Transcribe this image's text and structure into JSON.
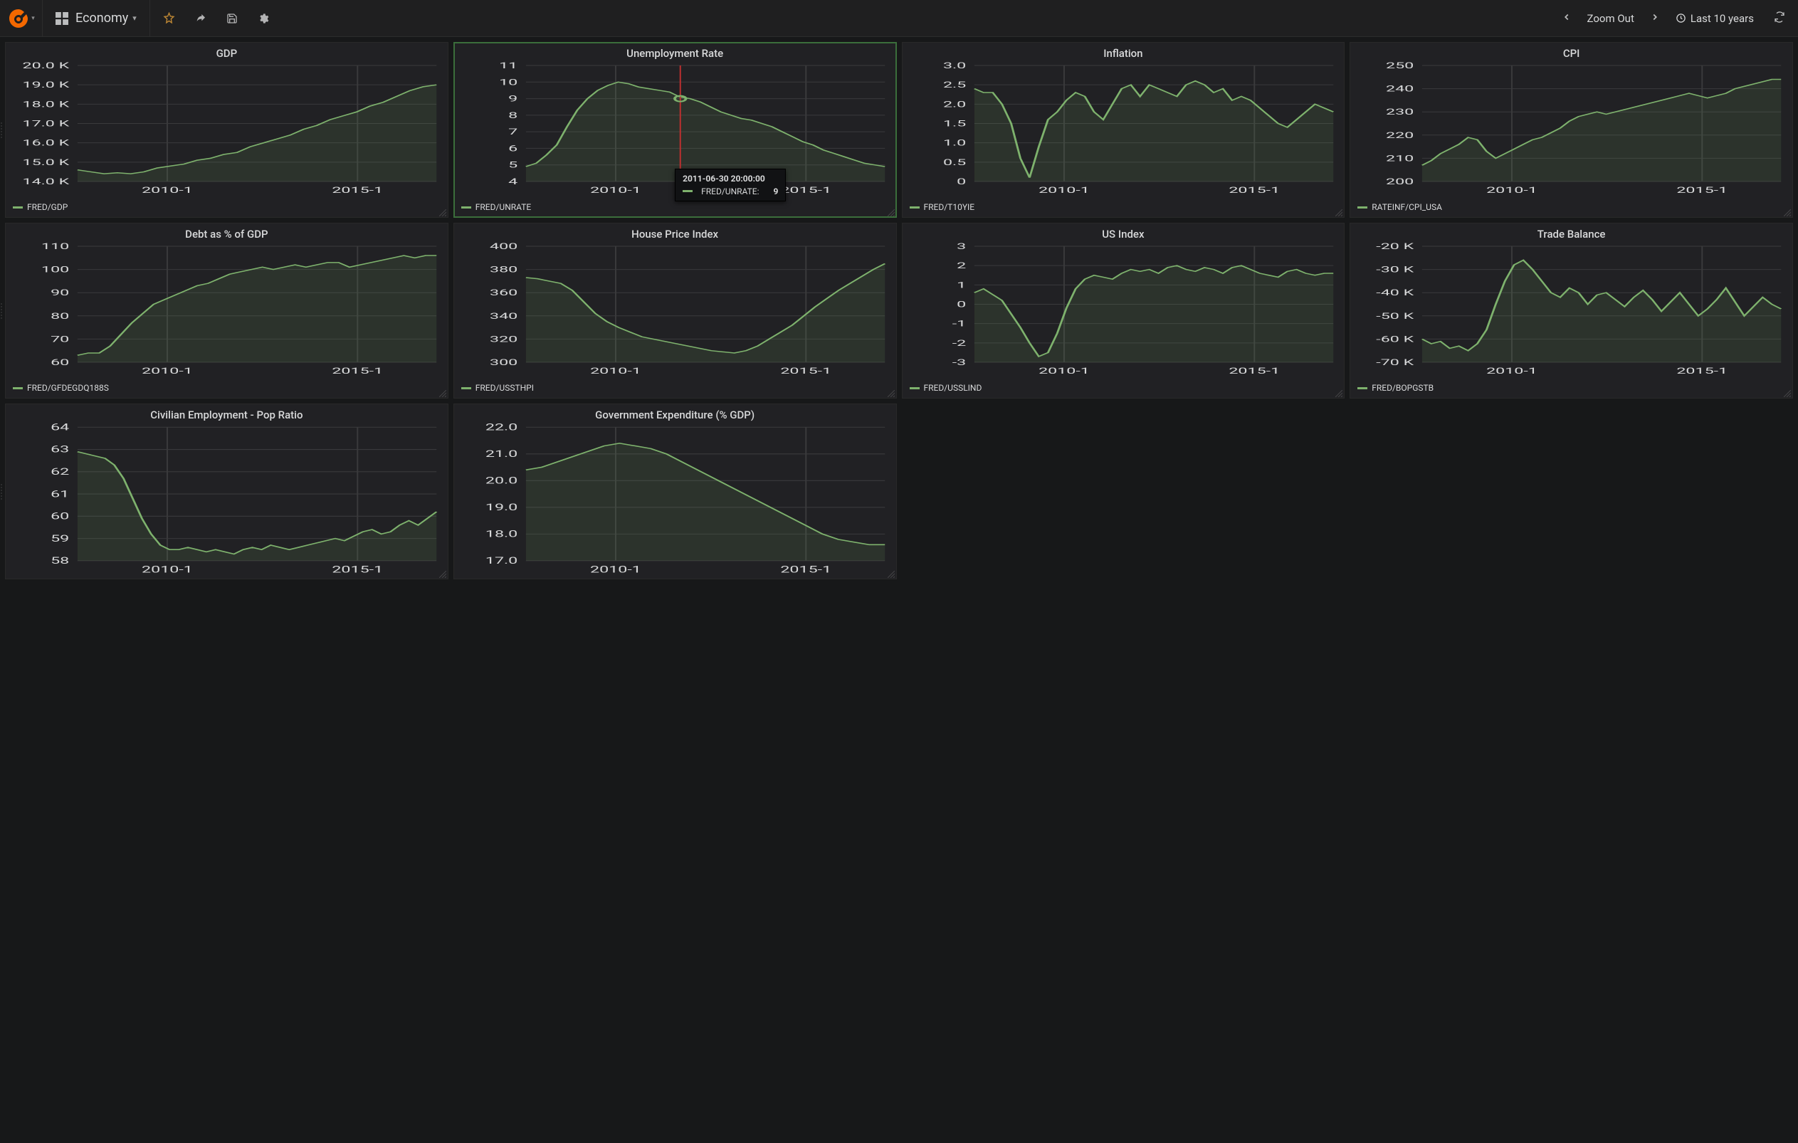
{
  "navbar": {
    "dashboard_title": "Economy",
    "zoom_out_label": "Zoom Out",
    "time_range_label": "Last 10 years"
  },
  "colors": {
    "background": "#171819",
    "panel_bg": "#212124",
    "grid": "#3a3a3c",
    "series": "#7eb26d",
    "area_opacity": 0.12,
    "crosshair": "#c03030",
    "text": "#d8d9da",
    "star": "#e5a13a"
  },
  "tooltip": {
    "timestamp": "2011-06-30 20:00:00",
    "series_label": "FRED/UNRATE:",
    "value": "9"
  },
  "xaxis": {
    "ticks": [
      "2010-1",
      "2015-1"
    ],
    "positions": [
      0.25,
      0.78
    ]
  },
  "panels": [
    {
      "id": "gdp",
      "title": "GDP",
      "legend": "FRED/GDP",
      "type": "line",
      "yticks": [
        "14.0 K",
        "15.0 K",
        "16.0 K",
        "17.0 K",
        "18.0 K",
        "19.0 K",
        "20.0 K"
      ],
      "ymin": 14000,
      "ymax": 20000,
      "values": [
        14600,
        14500,
        14400,
        14450,
        14400,
        14500,
        14700,
        14800,
        14900,
        15100,
        15200,
        15400,
        15500,
        15800,
        16000,
        16200,
        16400,
        16700,
        16900,
        17200,
        17400,
        17600,
        17900,
        18100,
        18400,
        18700,
        18900,
        19000
      ],
      "row_handle": true
    },
    {
      "id": "unrate",
      "title": "Unemployment Rate",
      "legend": "FRED/UNRATE",
      "type": "line",
      "yticks": [
        "4",
        "5",
        "6",
        "7",
        "8",
        "9",
        "10",
        "11"
      ],
      "ymin": 4,
      "ymax": 11,
      "values": [
        4.9,
        5.1,
        5.6,
        6.2,
        7.3,
        8.3,
        9.0,
        9.5,
        9.8,
        10.0,
        9.9,
        9.7,
        9.6,
        9.5,
        9.4,
        9.1,
        9.0,
        8.8,
        8.5,
        8.2,
        8.0,
        7.8,
        7.7,
        7.5,
        7.3,
        7.0,
        6.7,
        6.4,
        6.2,
        5.9,
        5.7,
        5.5,
        5.3,
        5.1,
        5.0,
        4.9
      ],
      "active": true,
      "crosshair_x": 0.43,
      "hover_value": 9.0,
      "tooltip_pos": {
        "left_pct": 50,
        "top_pct": 78
      }
    },
    {
      "id": "inflation",
      "title": "Inflation",
      "legend": "FRED/T10YIE",
      "type": "line",
      "yticks": [
        "0",
        "0.5",
        "1.0",
        "1.5",
        "2.0",
        "2.5",
        "3.0"
      ],
      "ymin": 0,
      "ymax": 3.0,
      "values": [
        2.4,
        2.3,
        2.3,
        2.0,
        1.5,
        0.6,
        0.1,
        0.9,
        1.6,
        1.8,
        2.1,
        2.3,
        2.2,
        1.8,
        1.6,
        2.0,
        2.4,
        2.5,
        2.2,
        2.5,
        2.4,
        2.3,
        2.2,
        2.5,
        2.6,
        2.5,
        2.3,
        2.4,
        2.1,
        2.2,
        2.1,
        1.9,
        1.7,
        1.5,
        1.4,
        1.6,
        1.8,
        2.0,
        1.9,
        1.8
      ],
      "row_handle": false
    },
    {
      "id": "cpi",
      "title": "CPI",
      "legend": "RATEINF/CPI_USA",
      "type": "line",
      "yticks": [
        "200",
        "210",
        "220",
        "230",
        "240",
        "250"
      ],
      "ymin": 200,
      "ymax": 250,
      "values": [
        207,
        209,
        212,
        214,
        216,
        219,
        218,
        213,
        210,
        212,
        214,
        216,
        218,
        219,
        221,
        223,
        226,
        228,
        229,
        230,
        229,
        230,
        231,
        232,
        233,
        234,
        235,
        236,
        237,
        238,
        237,
        236,
        237,
        238,
        240,
        241,
        242,
        243,
        244,
        244
      ]
    },
    {
      "id": "debt",
      "title": "Debt as % of GDP",
      "legend": "FRED/GFDEGDQ188S",
      "type": "line",
      "yticks": [
        "60",
        "70",
        "80",
        "90",
        "100",
        "110"
      ],
      "ymin": 60,
      "ymax": 110,
      "values": [
        63,
        64,
        64,
        67,
        72,
        77,
        81,
        85,
        87,
        89,
        91,
        93,
        94,
        96,
        98,
        99,
        100,
        101,
        100,
        101,
        102,
        101,
        102,
        103,
        103,
        101,
        102,
        103,
        104,
        105,
        106,
        105,
        106,
        106
      ],
      "row_handle": true
    },
    {
      "id": "housing",
      "title": "House Price Index",
      "legend": "FRED/USSTHPI",
      "type": "line",
      "yticks": [
        "300",
        "320",
        "340",
        "360",
        "380",
        "400"
      ],
      "ymin": 300,
      "ymax": 400,
      "values": [
        373,
        372,
        370,
        368,
        362,
        352,
        342,
        335,
        330,
        326,
        322,
        320,
        318,
        316,
        314,
        312,
        310,
        309,
        308,
        310,
        314,
        320,
        326,
        332,
        340,
        348,
        355,
        362,
        368,
        374,
        380,
        385
      ]
    },
    {
      "id": "usindex",
      "title": "US Index",
      "legend": "FRED/USSLIND",
      "type": "line",
      "yticks": [
        "-3",
        "-2",
        "-1",
        "0",
        "1",
        "2",
        "3"
      ],
      "ymin": -3,
      "ymax": 3,
      "values": [
        0.6,
        0.8,
        0.5,
        0.2,
        -0.5,
        -1.2,
        -2.0,
        -2.7,
        -2.5,
        -1.5,
        -0.2,
        0.8,
        1.3,
        1.5,
        1.4,
        1.3,
        1.6,
        1.8,
        1.7,
        1.8,
        1.6,
        1.9,
        2.0,
        1.8,
        1.7,
        1.9,
        1.8,
        1.6,
        1.9,
        2.0,
        1.8,
        1.6,
        1.5,
        1.4,
        1.7,
        1.8,
        1.6,
        1.5,
        1.6,
        1.6
      ]
    },
    {
      "id": "trade",
      "title": "Trade Balance",
      "legend": "FRED/BOPGSTB",
      "type": "line",
      "yticks": [
        "-70 K",
        "-60 K",
        "-50 K",
        "-40 K",
        "-30 K",
        "-20 K"
      ],
      "ymin": -70000,
      "ymax": -20000,
      "values": [
        -60000,
        -62000,
        -61000,
        -64000,
        -63000,
        -65000,
        -62000,
        -56000,
        -45000,
        -35000,
        -28000,
        -26000,
        -30000,
        -35000,
        -40000,
        -42000,
        -38000,
        -40000,
        -45000,
        -41000,
        -40000,
        -43000,
        -46000,
        -42000,
        -39000,
        -43000,
        -48000,
        -44000,
        -40000,
        -45000,
        -50000,
        -47000,
        -43000,
        -38000,
        -44000,
        -50000,
        -46000,
        -42000,
        -45000,
        -47000
      ]
    },
    {
      "id": "empop",
      "title": "Civilian Employment - Pop Ratio",
      "legend": "",
      "type": "line",
      "yticks": [
        "58",
        "59",
        "60",
        "61",
        "62",
        "63",
        "64"
      ],
      "ymin": 58,
      "ymax": 64,
      "values": [
        62.9,
        62.8,
        62.7,
        62.6,
        62.3,
        61.7,
        60.8,
        59.9,
        59.2,
        58.7,
        58.5,
        58.5,
        58.6,
        58.5,
        58.4,
        58.5,
        58.4,
        58.3,
        58.5,
        58.6,
        58.5,
        58.7,
        58.6,
        58.5,
        58.6,
        58.7,
        58.8,
        58.9,
        59.0,
        58.9,
        59.1,
        59.3,
        59.4,
        59.2,
        59.3,
        59.6,
        59.8,
        59.6,
        59.9,
        60.2
      ],
      "row_handle": true
    },
    {
      "id": "govexp",
      "title": "Government Expenditure (% GDP)",
      "legend": "",
      "type": "line",
      "yticks": [
        "17.0",
        "18.0",
        "19.0",
        "20.0",
        "21.0",
        "22.0"
      ],
      "ymin": 17,
      "ymax": 22,
      "values": [
        20.4,
        20.5,
        20.7,
        20.9,
        21.1,
        21.3,
        21.4,
        21.3,
        21.2,
        21.0,
        20.7,
        20.4,
        20.1,
        19.8,
        19.5,
        19.2,
        18.9,
        18.6,
        18.3,
        18.0,
        17.8,
        17.7,
        17.6,
        17.6
      ]
    }
  ]
}
